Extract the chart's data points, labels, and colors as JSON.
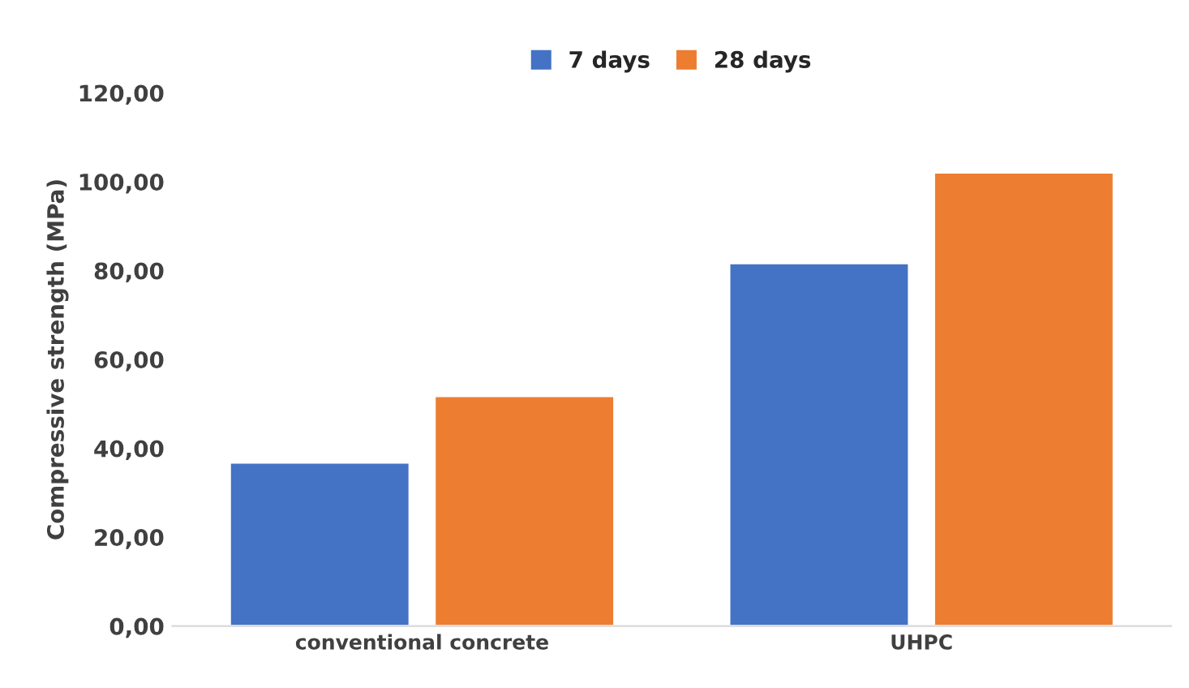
{
  "chart_data": {
    "type": "bar",
    "ylabel": "Compressive strength (MPa)",
    "categories": [
      "conventional concrete",
      "UHPC"
    ],
    "series": [
      {
        "name": "7 days",
        "color": "#4472c4",
        "values": [
          36.8,
          81.7
        ]
      },
      {
        "name": "28 days",
        "color": "#ed7d31",
        "values": [
          51.8,
          102.1
        ]
      }
    ],
    "ylim": [
      0,
      120
    ],
    "yticks": [
      {
        "value": 0,
        "label": "0,00"
      },
      {
        "value": 20,
        "label": "20,00"
      },
      {
        "value": 40,
        "label": "40,00"
      },
      {
        "value": 60,
        "label": "60,00"
      },
      {
        "value": 80,
        "label": "80,00"
      },
      {
        "value": 100,
        "label": "100,00"
      },
      {
        "value": 120,
        "label": "120,00"
      }
    ],
    "grid": false,
    "legend": "top"
  }
}
